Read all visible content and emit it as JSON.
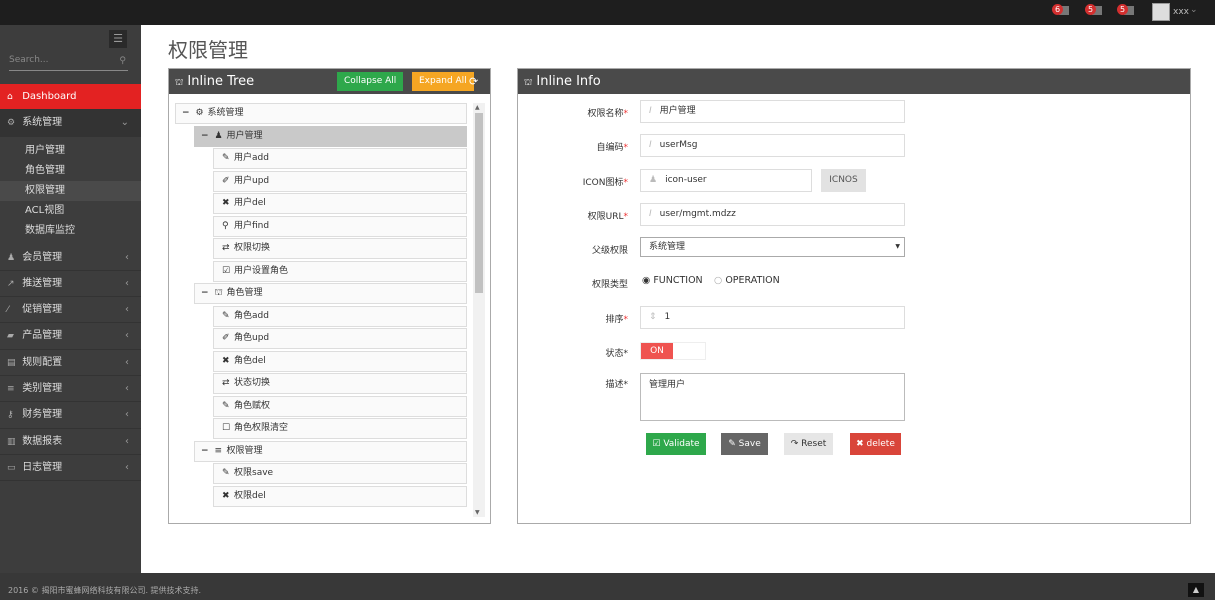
{
  "topbar": {
    "notifications": [
      {
        "count": "6",
        "icon": "bell-icon"
      },
      {
        "count": "5",
        "icon": "envelope-icon"
      },
      {
        "count": "5",
        "icon": "tasks-icon"
      }
    ],
    "user": "xxx"
  },
  "sidebar": {
    "search_placeholder": "Search...",
    "items": [
      {
        "label": "Dashboard",
        "icon": "home-icon",
        "active": true
      },
      {
        "label": "系统管理",
        "icon": "cogs-icon",
        "open": true,
        "children": [
          "用户管理",
          "角色管理",
          "权限管理",
          "ACL视图",
          "数据库监控"
        ],
        "current": "权限管理"
      },
      {
        "label": "会员管理",
        "icon": "user-icon"
      },
      {
        "label": "推送管理",
        "icon": "share-icon"
      },
      {
        "label": "促销管理",
        "icon": "tag-icon"
      },
      {
        "label": "产品管理",
        "icon": "box-icon"
      },
      {
        "label": "规则配置",
        "icon": "list-alt-icon"
      },
      {
        "label": "类别管理",
        "icon": "bars-icon"
      },
      {
        "label": "财务管理",
        "icon": "key-icon"
      },
      {
        "label": "数据报表",
        "icon": "chart-icon"
      },
      {
        "label": "日志管理",
        "icon": "credit-card-icon"
      }
    ]
  },
  "page": {
    "title": "权限管理"
  },
  "tree_panel": {
    "title": "Inline Tree",
    "collapse_all": "Collapse All",
    "expand_all": "Expand All",
    "nodes": [
      {
        "label": "系统管理",
        "level": 0,
        "icon": "cogs-icon",
        "toggle": "−"
      },
      {
        "label": "用户管理",
        "level": 1,
        "icon": "user-icon",
        "toggle": "−",
        "selected": true
      },
      {
        "label": "用户add",
        "level": 2,
        "icon": "pencil-icon"
      },
      {
        "label": "用户upd",
        "level": 2,
        "icon": "edit-icon"
      },
      {
        "label": "用户del",
        "level": 2,
        "icon": "times-icon"
      },
      {
        "label": "用户find",
        "level": 2,
        "icon": "search-icon"
      },
      {
        "label": "权限切换",
        "level": 2,
        "icon": "retweet-icon"
      },
      {
        "label": "用户设置角色",
        "level": 2,
        "icon": "check-square-icon"
      },
      {
        "label": "角色管理",
        "level": 1,
        "icon": "sitemap-icon",
        "toggle": "−"
      },
      {
        "label": "角色add",
        "level": 2,
        "icon": "pencil-icon"
      },
      {
        "label": "角色upd",
        "level": 2,
        "icon": "edit-icon"
      },
      {
        "label": "角色del",
        "level": 2,
        "icon": "times-icon"
      },
      {
        "label": "状态切换",
        "level": 2,
        "icon": "retweet-icon"
      },
      {
        "label": "角色赋权",
        "level": 2,
        "icon": "pencil-icon"
      },
      {
        "label": "角色权限清空",
        "level": 2,
        "icon": "square-icon"
      },
      {
        "label": "权限管理",
        "level": 1,
        "icon": "bars-icon",
        "toggle": "−"
      },
      {
        "label": "权限save",
        "level": 2,
        "icon": "pencil-icon"
      },
      {
        "label": "权限del",
        "level": 2,
        "icon": "times-icon"
      }
    ]
  },
  "info_panel": {
    "title": "Inline Info",
    "fields": {
      "name": {
        "label": "权限名称",
        "value": "用户管理"
      },
      "code": {
        "label": "自编码",
        "value": "userMsg"
      },
      "icon": {
        "label": "ICON图标",
        "value": "icon-user",
        "button": "ICNOS"
      },
      "url": {
        "label": "权限URL",
        "value": "user/mgmt.mdzz"
      },
      "parent": {
        "label": "父级权限",
        "value": "系统管理"
      },
      "type": {
        "label": "权限类型",
        "options": [
          "FUNCTION",
          "OPERATION"
        ],
        "selected": "FUNCTION"
      },
      "order": {
        "label": "排序",
        "value": "1"
      },
      "status": {
        "label": "状态",
        "value": "ON"
      },
      "desc": {
        "label": "描述",
        "value": "管理用户"
      }
    },
    "buttons": {
      "validate": "Validate",
      "save": "Save",
      "reset": "Reset",
      "delete": "delete"
    }
  },
  "colors": {
    "accent": "#e32222",
    "green": "#2ea84b",
    "orange": "#f5a623",
    "delete": "#d9453a"
  },
  "footer": {
    "text": "2016 © 揭阳市蜜蜂网络科技有限公司. 提供技术支持."
  }
}
